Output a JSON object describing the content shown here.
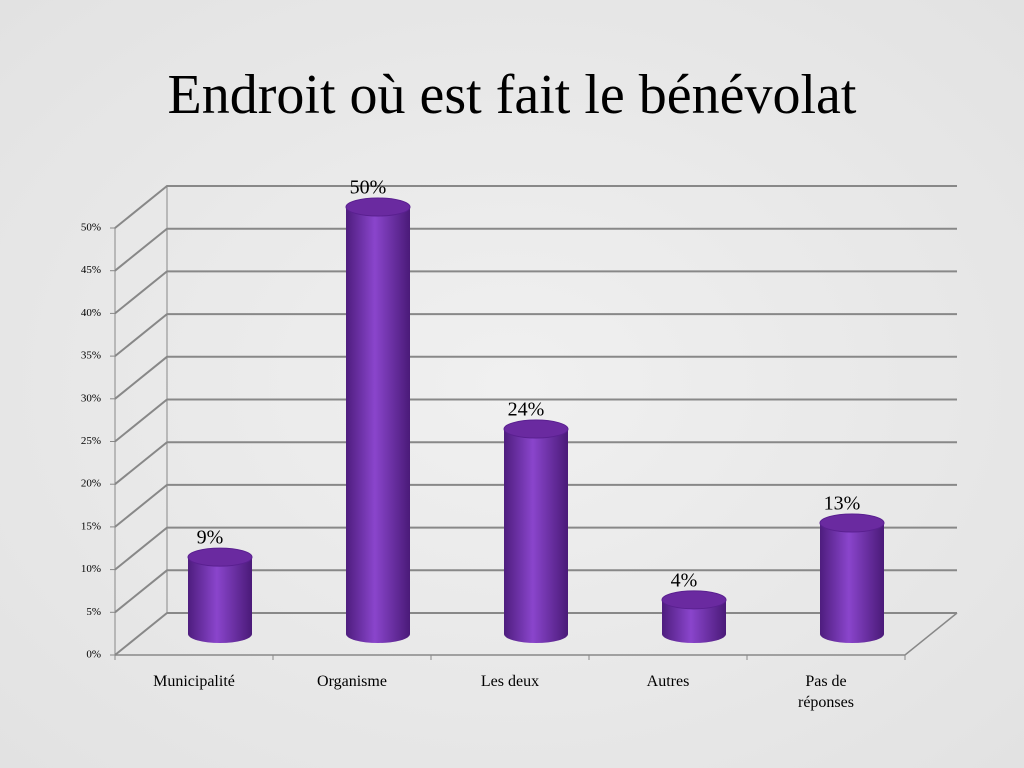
{
  "chart_data": {
    "type": "bar",
    "title": "Endroit où est fait le bénévolat",
    "categories": [
      "Municipalité",
      "Organisme",
      "Les deux",
      "Autres",
      "Pas de réponses"
    ],
    "values": [
      9,
      50,
      24,
      4,
      13
    ],
    "value_labels": [
      "9%",
      "50%",
      "24%",
      "4%",
      "13%"
    ],
    "color": "#7030a0",
    "ylim": [
      0,
      50
    ],
    "yticks": [
      {
        "value": 0,
        "label": "0%"
      },
      {
        "value": 5,
        "label": "5%"
      },
      {
        "value": 10,
        "label": "10%"
      },
      {
        "value": 15,
        "label": "15%"
      },
      {
        "value": 20,
        "label": "20%"
      },
      {
        "value": 25,
        "label": "25%"
      },
      {
        "value": 30,
        "label": "30%"
      },
      {
        "value": 35,
        "label": "35%"
      },
      {
        "value": 40,
        "label": "40%"
      },
      {
        "value": 45,
        "label": "45%"
      },
      {
        "value": 50,
        "label": "50%"
      }
    ],
    "grid": true
  }
}
